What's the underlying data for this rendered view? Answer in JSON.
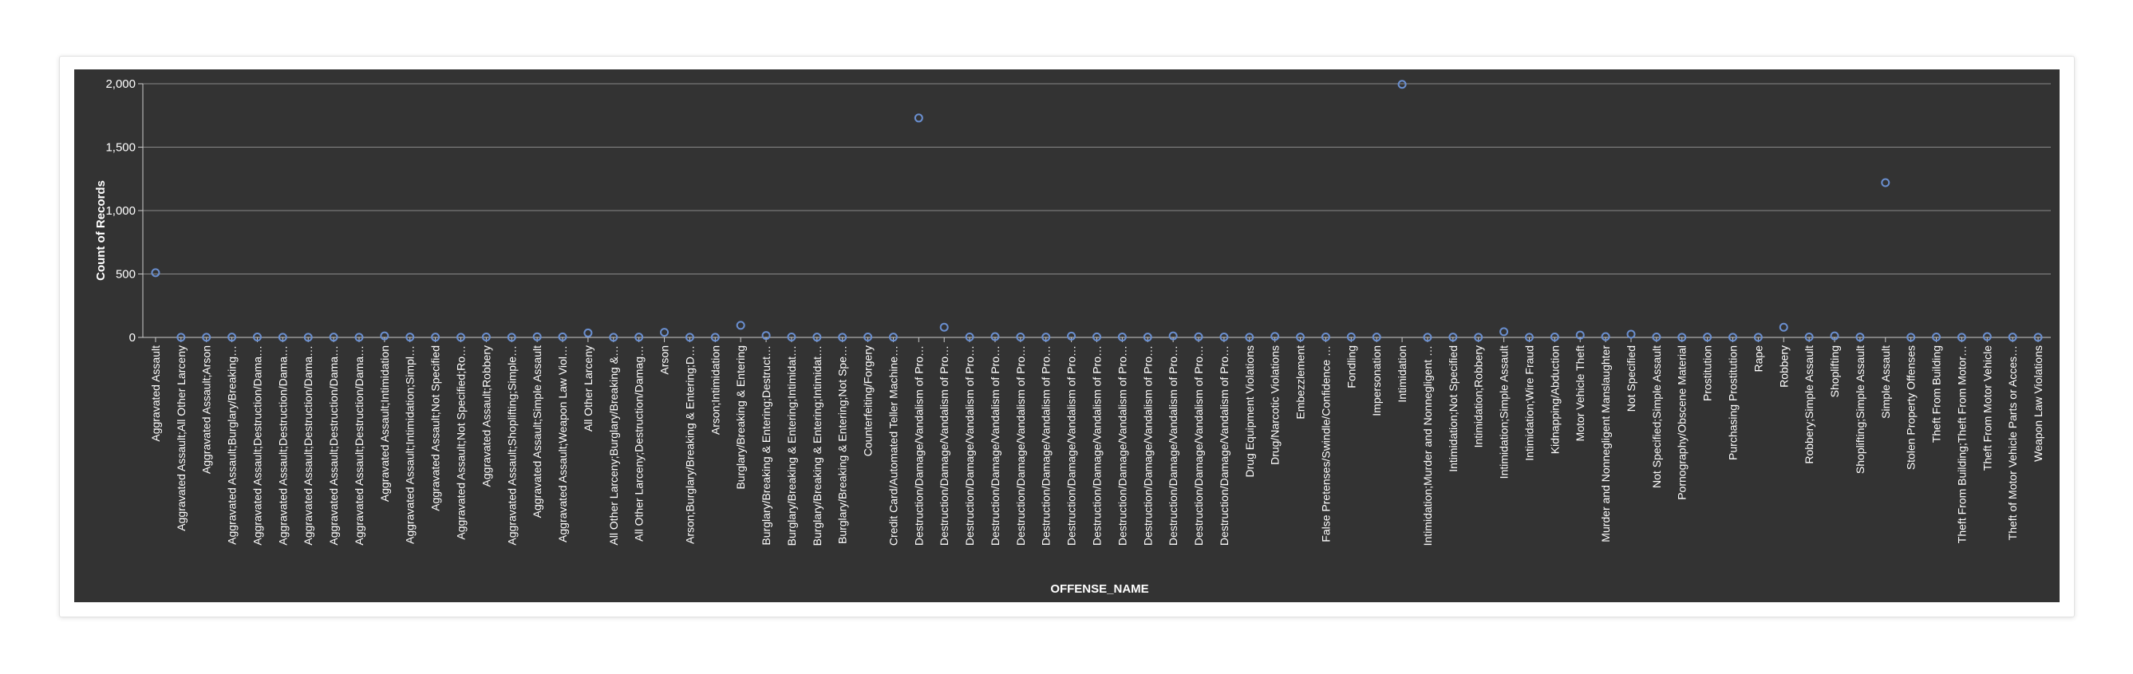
{
  "colors": {
    "background": "#333333",
    "point_stroke": "#6a8fd0",
    "grid": "#8a8a8a",
    "axis": "#cccccc",
    "text": "#ffffff"
  },
  "chart_data": {
    "type": "scatter",
    "title": "",
    "xlabel": "OFFENSE_NAME",
    "ylabel": "Count of Records",
    "ylim": [
      0,
      2000
    ],
    "yticks": [
      0,
      500,
      1000,
      1500,
      2000
    ],
    "ytick_labels": [
      "0",
      "500",
      "1,000",
      "1,500",
      "2,000"
    ],
    "grid": true,
    "categories": [
      "Aggravated Assault",
      "Aggravated Assault;All Other Larceny",
      "Aggravated Assault;Arson",
      "Aggravated Assault;Burglary/Breaking…",
      "Aggravated Assault;Destruction/Dama…",
      "Aggravated Assault;Destruction/Dama…",
      "Aggravated Assault;Destruction/Dama…",
      "Aggravated Assault;Destruction/Dama…",
      "Aggravated Assault;Destruction/Dama…",
      "Aggravated Assault;Intimidation",
      "Aggravated Assault;Intimidation;Simpl…",
      "Aggravated Assault;Not Specified",
      "Aggravated Assault;Not Specified;Ro…",
      "Aggravated Assault;Robbery",
      "Aggravated Assault;Shoplifting;Simple…",
      "Aggravated Assault;Simple Assault",
      "Aggravated Assault;Weapon Law Viol…",
      "All Other Larceny",
      "All Other Larceny;Burglary/Breaking &…",
      "All Other Larceny;Destruction/Damag…",
      "Arson",
      "Arson;Burglary/Breaking & Entering;D…",
      "Arson;Intimidation",
      "Burglary/Breaking & Entering",
      "Burglary/Breaking & Entering;Destruct…",
      "Burglary/Breaking & Entering;Intimidat…",
      "Burglary/Breaking & Entering;Intimidat…",
      "Burglary/Breaking & Entering;Not Spe…",
      "Counterfeiting/Forgery",
      "Credit Card/Automated Teller Machine…",
      "Destruction/Damage/Vandalism of Pro…",
      "Destruction/Damage/Vandalism of Pro…",
      "Destruction/Damage/Vandalism of Pro…",
      "Destruction/Damage/Vandalism of Pro…",
      "Destruction/Damage/Vandalism of Pro…",
      "Destruction/Damage/Vandalism of Pro…",
      "Destruction/Damage/Vandalism of Pro…",
      "Destruction/Damage/Vandalism of Pro…",
      "Destruction/Damage/Vandalism of Pro…",
      "Destruction/Damage/Vandalism of Pro…",
      "Destruction/Damage/Vandalism of Pro…",
      "Destruction/Damage/Vandalism of Pro…",
      "Destruction/Damage/Vandalism of Pro…",
      "Drug Equipment Violations",
      "Drug/Narcotic Violations",
      "Embezzlement",
      "False Pretenses/Swindle/Confidence …",
      "Fondling",
      "Impersonation",
      "Intimidation",
      "Intimidation;Murder and Nonnegligent …",
      "Intimidation;Not Specified",
      "Intimidation;Robbery",
      "Intimidation;Simple Assault",
      "Intimidation;Wire Fraud",
      "Kidnapping/Abduction",
      "Motor Vehicle Theft",
      "Murder and Nonnegligent Manslaughter",
      "Not Specified",
      "Not Specified;Simple Assault",
      "Pornography/Obscene Material",
      "Prostitution",
      "Purchasing Prostitution",
      "Rape",
      "Robbery",
      "Robbery;Simple Assault",
      "Shoplifting",
      "Shoplifting;Simple Assault",
      "Simple Assault",
      "Stolen Property Offenses",
      "Theft From Building",
      "Theft From Building;Theft From Motor…",
      "Theft From Motor Vehicle",
      "Theft of Motor Vehicle Parts or Acces…",
      "Weapon Law Violations"
    ],
    "values": [
      510,
      1,
      1,
      2,
      3,
      1,
      1,
      2,
      1,
      12,
      2,
      2,
      1,
      3,
      1,
      5,
      4,
      35,
      1,
      2,
      40,
      1,
      1,
      95,
      15,
      3,
      2,
      1,
      3,
      2,
      1730,
      80,
      3,
      6,
      3,
      2,
      10,
      4,
      3,
      2,
      12,
      5,
      3,
      1,
      8,
      2,
      3,
      4,
      2,
      1995,
      1,
      2,
      1,
      45,
      1,
      3,
      18,
      6,
      25,
      3,
      1,
      2,
      1,
      1,
      80,
      3,
      12,
      2,
      1220,
      1,
      3,
      1,
      6,
      2,
      1
    ]
  }
}
